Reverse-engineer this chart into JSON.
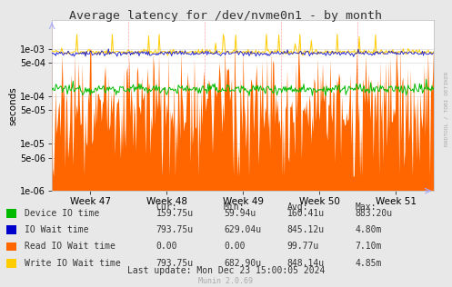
{
  "title": "Average latency for /dev/nvme0n1 - by month",
  "ylabel": "seconds",
  "xlabel_ticks": [
    "Week 47",
    "Week 48",
    "Week 49",
    "Week 50",
    "Week 51"
  ],
  "ylim_min": 2e-06,
  "ylim_max": 0.004,
  "bg_color": "#e8e8e8",
  "plot_bg_color": "#ffffff",
  "grid_color_h": "#dddddd",
  "grid_color_v": "#ffcccc",
  "legend_items": [
    {
      "label": "Device IO time",
      "color": "#00bb00"
    },
    {
      "label": "IO Wait time",
      "color": "#0000cc"
    },
    {
      "label": "Read IO Wait time",
      "color": "#ff6600"
    },
    {
      "label": "Write IO Wait time",
      "color": "#ffcc00"
    }
  ],
  "stats_header": [
    "Cur:",
    "Min:",
    "Avg:",
    "Max:"
  ],
  "stats": [
    [
      "159.75u",
      "59.94u",
      "160.41u",
      "883.20u"
    ],
    [
      "793.75u",
      "629.04u",
      "845.12u",
      "4.80m"
    ],
    [
      "0.00",
      "0.00",
      "99.77u",
      "7.10m"
    ],
    [
      "793.75u",
      "682.90u",
      "848.14u",
      "4.85m"
    ]
  ],
  "last_update": "Last update: Mon Dec 23 15:00:05 2024",
  "munin_version": "Munin 2.0.69",
  "rrdtool_label": "RRDTOOL / TOBI OETIKER",
  "n_points": 400,
  "device_io_base": 0.00014,
  "write_io_base": 0.00085,
  "io_wait_base": 0.0008,
  "yticks": [
    1e-06,
    5e-06,
    1e-05,
    5e-05,
    0.0001,
    0.0005,
    0.001
  ],
  "ytick_labels": [
    "1e-06",
    "5e-06",
    "1e-05",
    "5e-05",
    "1e-04",
    "5e-04",
    "1e-03"
  ]
}
